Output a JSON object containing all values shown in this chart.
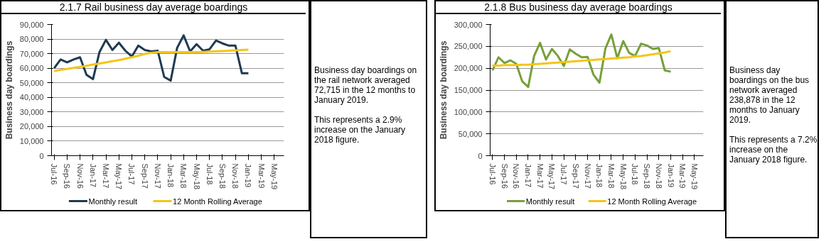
{
  "chart_data": [
    {
      "type": "line",
      "title": "2.1.7 Rail business day average boardings",
      "ylabel": "Business day boardings",
      "categories": [
        "Jul-16",
        null,
        "Sep-16",
        null,
        "Nov-16",
        null,
        "Jan-17",
        null,
        "Mar-17",
        null,
        "May-17",
        null,
        "Jul-17",
        null,
        "Sep-17",
        null,
        "Nov-17",
        null,
        "Jan-18",
        null,
        "Mar-18",
        null,
        "May-18",
        null,
        "Jul-18",
        null,
        "Sep-18",
        null,
        "Nov-18",
        null,
        "Jan-19",
        null,
        "Mar-19",
        null,
        "May-19",
        null
      ],
      "ylim": [
        0,
        90000
      ],
      "yticks": [
        0,
        {
          "value": 10000,
          "label": "10,000"
        },
        {
          "value": 20000,
          "label": "20,000"
        },
        {
          "value": 30000,
          "label": "30,000"
        },
        {
          "value": 40000,
          "label": "40,000"
        },
        {
          "value": 50000,
          "label": "50,000"
        },
        {
          "value": 60000,
          "label": "60,000"
        },
        {
          "value": 70000,
          "label": "70,000"
        },
        {
          "value": 80000,
          "label": "80,000"
        },
        {
          "value": 90000,
          "label": "90,000"
        }
      ],
      "grid": "y",
      "legend": "bottom",
      "series": [
        {
          "name": "Monthly result",
          "color": "#1f3a52",
          "values": [
            60000,
            66000,
            64000,
            66000,
            67500,
            55500,
            52500,
            71000,
            79500,
            72500,
            77500,
            72000,
            68000,
            75500,
            72500,
            71500,
            72000,
            54000,
            51500,
            74000,
            82500,
            71500,
            76500,
            72000,
            73000,
            79000,
            77000,
            75500,
            75500,
            56500,
            56500,
            null,
            null,
            null,
            null,
            null
          ]
        },
        {
          "name": "12 Month Rolling Average",
          "color": "#f5c518",
          "values": [
            58000,
            58800,
            59500,
            60200,
            61000,
            61700,
            62500,
            63200,
            64000,
            64800,
            65600,
            66500,
            67500,
            68500,
            69800,
            70500,
            71000,
            71000,
            71000,
            71000,
            71000,
            71000,
            71000,
            71200,
            71400,
            71600,
            71800,
            72000,
            72300,
            72500,
            72700,
            null,
            null,
            null,
            null,
            null
          ]
        }
      ]
    },
    {
      "type": "other",
      "annotations": [
        "Business day boardings on the rail network averaged 72,715 in the 12 months to January 2019.",
        "This represents a 2.9% increase on the January 2018 figure."
      ]
    },
    {
      "type": "line",
      "title": "2.1.8 Bus business day average boardings",
      "ylabel": "Business day boardings",
      "categories": [
        "Jul-16",
        null,
        "Sep-16",
        null,
        "Nov-16",
        null,
        "Jan-17",
        null,
        "Mar-17",
        null,
        "May-17",
        null,
        "Jul-17",
        null,
        "Sep-17",
        null,
        "Nov-17",
        null,
        "Jan-18",
        null,
        "Mar-18",
        null,
        "May-18",
        null,
        "Jul-18",
        null,
        "Sep-18",
        null,
        "Nov-18",
        null,
        "Jan-19",
        null,
        "Mar-19",
        null,
        "May-19",
        null
      ],
      "ylim": [
        0,
        300000
      ],
      "yticks": [
        0,
        {
          "value": 50000,
          "label": "50,000"
        },
        {
          "value": 100000,
          "label": "100,000"
        },
        {
          "value": 150000,
          "label": "150,000"
        },
        {
          "value": 200000,
          "label": "200,000"
        },
        {
          "value": 250000,
          "label": "250,000"
        },
        {
          "value": 300000,
          "label": "300,000"
        }
      ],
      "grid": "y",
      "legend": "bottom",
      "series": [
        {
          "name": "Monthly result",
          "color": "#77a03a",
          "values": [
            195000,
            225000,
            212000,
            218000,
            210000,
            170000,
            157000,
            228000,
            258000,
            220000,
            244000,
            228000,
            205000,
            243000,
            233000,
            225000,
            226000,
            185000,
            167000,
            245000,
            277000,
            223000,
            262000,
            235000,
            228000,
            256000,
            252000,
            244000,
            246000,
            195000,
            192000,
            null,
            null,
            null,
            null,
            null
          ]
        },
        {
          "name": "12 Month Rolling Average",
          "color": "#f5c518",
          "values": [
            206000,
            206000,
            207000,
            207000,
            207000,
            208000,
            208000,
            209000,
            210000,
            211000,
            212000,
            213000,
            214000,
            215000,
            216000,
            217000,
            218000,
            219000,
            220000,
            221000,
            222000,
            223000,
            224000,
            225000,
            227000,
            228000,
            230000,
            232000,
            234000,
            236000,
            239000,
            null,
            null,
            null,
            null,
            null
          ]
        }
      ]
    },
    {
      "type": "other",
      "annotations": [
        "Business day boardings on the bus network averaged 238,878 in the 12 months to January 2019.",
        "This represents a 7.2% increase on the January 2018 figure."
      ]
    }
  ]
}
